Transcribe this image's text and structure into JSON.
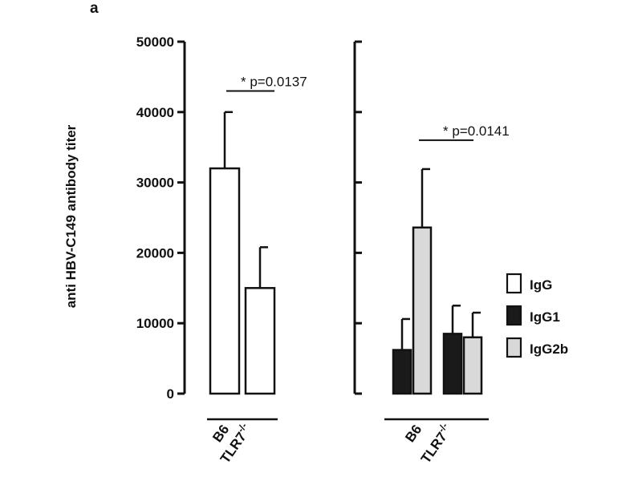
{
  "panel_label": "a",
  "colors": {
    "IgG": "#ffffff",
    "IgG1": "#1a1a1a",
    "IgG2b": "#d9d9d9",
    "stroke": "#111111"
  },
  "chart_data": {
    "type": "bar",
    "ylabel": "anti HBV-C149 antibody titer",
    "ylim": [
      0,
      50000
    ],
    "yticks": [
      0,
      10000,
      20000,
      30000,
      40000,
      50000
    ],
    "ytick_labels": [
      "0",
      "10000",
      "20000",
      "30000",
      "40000",
      "50000"
    ],
    "legend": {
      "position": "right",
      "entries": [
        {
          "name": "IgG",
          "color": "#ffffff"
        },
        {
          "name": "IgG1",
          "color": "#1a1a1a"
        },
        {
          "name": "IgG2b",
          "color": "#d9d9d9"
        }
      ]
    },
    "panels": [
      {
        "categories": [
          "B6",
          "TLR7-/-"
        ],
        "category_labels": [
          {
            "base": "B6",
            "sup": ""
          },
          {
            "base": "TLR7",
            "sup": "-/-"
          }
        ],
        "series": [
          {
            "name": "IgG",
            "values": [
              32000,
              15000
            ],
            "errors": [
              8000,
              5800
            ]
          }
        ],
        "significance": {
          "text": "*  p=0.0137",
          "y": 43000
        }
      },
      {
        "categories": [
          "B6",
          "TLR7-/-"
        ],
        "category_labels": [
          {
            "base": "B6",
            "sup": ""
          },
          {
            "base": "TLR7",
            "sup": "-/-"
          }
        ],
        "series": [
          {
            "name": "IgG1",
            "values": [
              6200,
              8500
            ],
            "errors": [
              4400,
              4000
            ]
          },
          {
            "name": "IgG2b",
            "values": [
              23600,
              8000
            ],
            "errors": [
              8300,
              3500
            ]
          }
        ],
        "significance": {
          "text": "* p=0.0141",
          "y": 36000
        }
      }
    ]
  }
}
